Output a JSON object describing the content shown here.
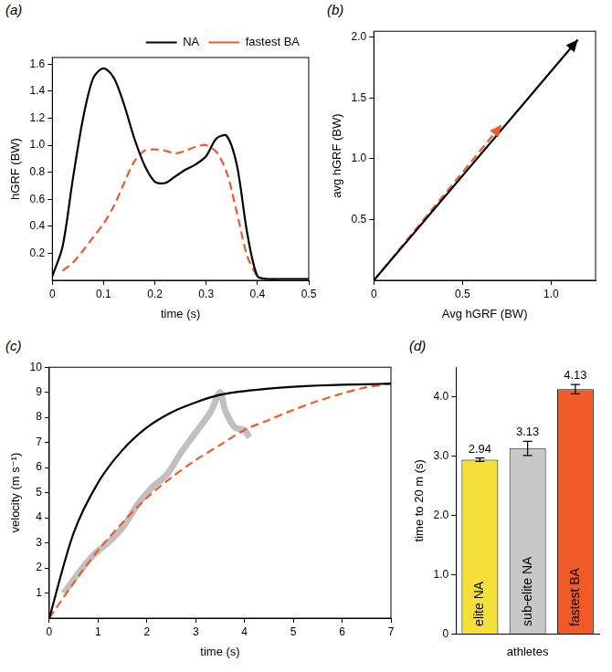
{
  "chart_data": [
    {
      "panel": "(a)",
      "type": "line",
      "x_label": "time (s)",
      "y_label": "hGRF (BW)",
      "x": [
        0,
        0.02,
        0.04,
        0.06,
        0.08,
        0.1,
        0.12,
        0.14,
        0.16,
        0.18,
        0.2,
        0.22,
        0.24,
        0.26,
        0.28,
        0.3,
        0.32,
        0.34,
        0.36,
        0.38,
        0.4,
        0.42,
        0.44,
        0.46,
        0.48,
        0.5
      ],
      "series": [
        {
          "name": "NA",
          "color": "#000000",
          "line_style": "solid",
          "values": [
            0.03,
            0.25,
            0.75,
            1.2,
            1.5,
            1.57,
            1.5,
            1.3,
            1.05,
            0.85,
            0.73,
            0.72,
            0.77,
            0.82,
            0.86,
            0.92,
            1.05,
            1.07,
            0.85,
            0.35,
            0.03,
            0.01,
            0.01,
            0.01,
            0.01,
            0.01
          ]
        },
        {
          "name": "fastest BA",
          "color": "#f05a28",
          "line_style": "dashed",
          "values": [
            null,
            0.07,
            0.13,
            0.22,
            0.32,
            0.42,
            0.55,
            0.72,
            0.88,
            0.96,
            0.97,
            0.96,
            0.94,
            0.96,
            0.99,
            1.0,
            0.95,
            0.8,
            0.5,
            0.18,
            0.02,
            null,
            null,
            null,
            null,
            null
          ]
        }
      ],
      "xlim": [
        0,
        0.5
      ],
      "xticks": [
        0,
        0.1,
        0.2,
        0.3,
        0.4,
        0.5
      ],
      "ylim": [
        0,
        1.65
      ],
      "yticks": [
        0.2,
        0.4,
        0.6,
        0.8,
        {
          "value": 1,
          "label": "1.0"
        },
        1.2,
        1.4,
        1.6
      ],
      "grid": false,
      "legend": "top"
    },
    {
      "panel": "(b)",
      "type": "line",
      "x_label": "Avg hGRF (BW)",
      "y_label": "avg hGRF (BW)",
      "series": [
        {
          "color": "#000000",
          "line_style": "solid",
          "marker": "arrow",
          "x": [
            0,
            1.15
          ],
          "values": [
            0,
            1.98
          ]
        },
        {
          "color": "#f05a28",
          "line_style": "dashed",
          "marker": "arrow",
          "x": [
            0,
            0.72
          ],
          "values": [
            0,
            1.28
          ]
        }
      ],
      "xlim": [
        0,
        1.25
      ],
      "xticks": [
        0,
        0.5,
        {
          "value": 1,
          "label": "1.0"
        }
      ],
      "ylim": [
        0,
        2.05
      ],
      "yticks": [
        0.5,
        {
          "value": 1,
          "label": "1.0"
        },
        1.5,
        {
          "value": 2,
          "label": "2.0"
        }
      ],
      "grid": false
    },
    {
      "panel": "(c)",
      "type": "line",
      "x_label": "time (s)",
      "y_label": "velocity (m s⁻¹)",
      "series": [
        {
          "color": "#b0b0b0",
          "line_style": "thick",
          "x": [
            0.3,
            0.6,
            0.9,
            1.2,
            1.5,
            1.8,
            2.1,
            2.4,
            2.7,
            3.0,
            3.3,
            3.5,
            3.6,
            3.8,
            4.0,
            4.1
          ],
          "values": [
            1.0,
            1.8,
            2.5,
            3.0,
            3.6,
            4.5,
            5.2,
            5.7,
            6.6,
            7.4,
            8.2,
            9.0,
            8.3,
            7.6,
            7.5,
            7.2
          ]
        },
        {
          "color": "#000000",
          "line_style": "solid",
          "x": [
            0,
            0.5,
            1,
            1.5,
            2,
            2.5,
            3,
            3.5,
            4,
            4.5,
            5,
            5.5,
            6,
            6.5,
            7
          ],
          "values": [
            0,
            3.4,
            5.4,
            6.7,
            7.6,
            8.2,
            8.6,
            8.9,
            9.05,
            9.15,
            9.22,
            9.27,
            9.3,
            9.32,
            9.35
          ]
        },
        {
          "color": "#f05a28",
          "line_style": "dashed",
          "x": [
            0,
            0.5,
            1,
            1.5,
            2,
            2.5,
            3,
            3.5,
            4,
            4.5,
            5,
            5.5,
            6,
            6.5,
            7
          ],
          "values": [
            0,
            1.4,
            2.7,
            3.8,
            4.8,
            5.6,
            6.3,
            6.9,
            7.5,
            7.9,
            8.3,
            8.65,
            8.95,
            9.2,
            9.35
          ]
        }
      ],
      "xlim": [
        0,
        7
      ],
      "xticks": [
        0,
        1,
        2,
        3,
        4,
        5,
        6,
        7
      ],
      "ylim": [
        0,
        10
      ],
      "yticks": [
        1,
        2,
        3,
        4,
        5,
        6,
        7,
        8,
        9,
        10
      ],
      "grid": false
    },
    {
      "panel": "(d)",
      "type": "bar",
      "x_label": "athletes",
      "y_label": "time to 20 m (s)",
      "categories": [
        "elite NA",
        "sub-elite NA",
        "fastest BA"
      ],
      "values": [
        2.94,
        3.13,
        4.13
      ],
      "errors": [
        0.03,
        0.12,
        0.08
      ],
      "colors": [
        "#f5e03a",
        "#c8c8c8",
        "#f05a28"
      ],
      "ylim": [
        0,
        4.5
      ],
      "yticks": [
        0,
        {
          "value": 1,
          "label": "1.0"
        },
        {
          "value": 2,
          "label": "2.0"
        },
        {
          "value": 3,
          "label": "3.0"
        },
        {
          "value": 4,
          "label": "4.0"
        }
      ],
      "grid": false,
      "data_labels": true,
      "tick_labels": "y"
    }
  ]
}
